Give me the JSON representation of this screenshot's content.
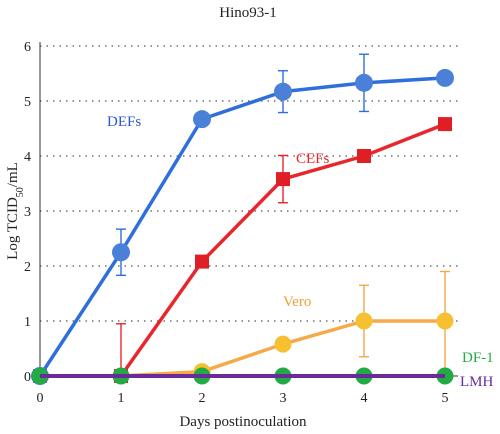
{
  "chart_data": {
    "type": "line",
    "title": "Hino93-1",
    "xlabel": "Days postinoculation",
    "ylabel_main": "Log TCID",
    "ylabel_sub": "50",
    "ylabel_tail": "/mL",
    "x": [
      0,
      1,
      2,
      3,
      4,
      5
    ],
    "xlim": [
      0,
      5
    ],
    "ylim": [
      0,
      6
    ],
    "x_ticks": [
      "0",
      "1",
      "2",
      "3",
      "4",
      "5"
    ],
    "y_ticks": [
      "0",
      "1",
      "2",
      "3",
      "4",
      "5",
      "6"
    ],
    "grid": "horizontal dotted",
    "series": [
      {
        "name": "DEFs",
        "color": "#2f6fdc",
        "marker_color": "#4a80d8",
        "marker": "circle",
        "values": [
          0,
          2.25,
          4.67,
          5.17,
          5.33,
          5.42
        ],
        "error": [
          null,
          0.42,
          null,
          0.38,
          0.52,
          null
        ]
      },
      {
        "name": "CEFs",
        "color": "#e8262c",
        "marker_color": "#e01e26",
        "marker": "square",
        "values": [
          0,
          0,
          2.08,
          3.58,
          4.0,
          4.58
        ],
        "error": [
          null,
          0.95,
          null,
          0.43,
          null,
          null
        ]
      },
      {
        "name": "Vero",
        "color": "#f5a948",
        "marker_color": "#f7c030",
        "marker": "circle",
        "values": [
          0,
          0,
          0.08,
          0.58,
          1.0,
          1.0
        ],
        "error": [
          null,
          null,
          null,
          null,
          0.65,
          0.9
        ]
      },
      {
        "name": "DF-1",
        "color": "#22aa44",
        "marker_color": "#22aa44",
        "marker": "circle",
        "values": [
          0,
          0,
          0,
          0,
          0,
          0
        ],
        "error": [
          null,
          null,
          null,
          null,
          null,
          null
        ]
      },
      {
        "name": "LMH",
        "color": "#6a2a9a",
        "marker_color": "#6a2a9a",
        "marker": "none",
        "values": [
          0,
          0,
          0,
          0,
          0,
          0
        ],
        "error": [
          null,
          null,
          null,
          null,
          null,
          null
        ]
      }
    ]
  }
}
